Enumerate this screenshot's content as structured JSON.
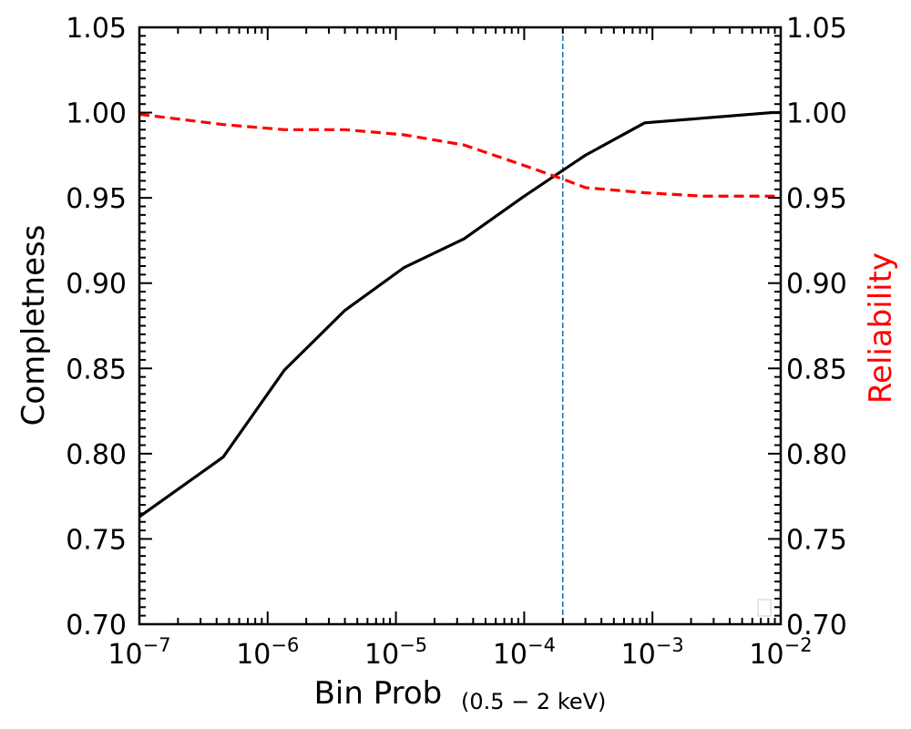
{
  "chart_data": {
    "type": "line",
    "xlabel": "Bin Prob",
    "xlabel_subscript": "(0.5 − 2 keV)",
    "ylabel_left": "Completness",
    "ylabel_right": "Reliability",
    "x_scale": "log",
    "xlim": [
      1e-07,
      0.01
    ],
    "ylim": [
      0.7,
      1.05
    ],
    "x_tick_labels": [
      {
        "value": 1e-07,
        "base": "10",
        "exp": "−7"
      },
      {
        "value": 1e-06,
        "base": "10",
        "exp": "−6"
      },
      {
        "value": 1e-05,
        "base": "10",
        "exp": "−5"
      },
      {
        "value": 0.0001,
        "base": "10",
        "exp": "−4"
      },
      {
        "value": 0.001,
        "base": "10",
        "exp": "−3"
      },
      {
        "value": 0.01,
        "base": "10",
        "exp": "−2"
      }
    ],
    "y_ticks": [
      0.7,
      0.75,
      0.8,
      0.85,
      0.9,
      0.95,
      1.0,
      1.05
    ],
    "y_tick_labels": [
      "0.70",
      "0.75",
      "0.80",
      "0.85",
      "0.90",
      "0.95",
      "1.00",
      "1.05"
    ],
    "series": [
      {
        "key": "completeness",
        "axis": "left",
        "color": "#000000",
        "style": "solid",
        "x": [
          1e-07,
          4.5e-07,
          1.35e-06,
          4e-06,
          1.15e-05,
          3.4e-05,
          0.0001,
          0.0003,
          0.00087,
          0.0085,
          0.01
        ],
        "y": [
          0.763,
          0.798,
          0.849,
          0.884,
          0.909,
          0.926,
          0.951,
          0.975,
          0.994,
          1.0,
          1.0
        ]
      },
      {
        "key": "reliability",
        "axis": "right",
        "color": "#ff0000",
        "style": "dashed",
        "x": [
          1e-07,
          4.5e-07,
          1.35e-06,
          4e-06,
          1.15e-05,
          3.4e-05,
          0.0001,
          0.0002,
          0.0003,
          0.00087,
          0.0025,
          0.01
        ],
        "y": [
          0.999,
          0.993,
          0.99,
          0.99,
          0.987,
          0.981,
          0.969,
          0.961,
          0.956,
          0.953,
          0.951,
          0.951
        ]
      }
    ],
    "reference_lines": [
      {
        "axis": "x",
        "value": 0.0002,
        "color": "#1f77b4",
        "style": "dashed"
      }
    ],
    "legend": {
      "placement": "lower-right",
      "entries": []
    },
    "grid": false
  }
}
